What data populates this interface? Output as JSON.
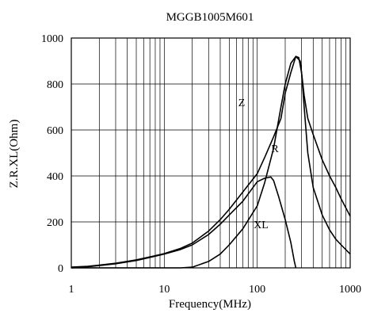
{
  "chart_data": {
    "type": "line",
    "title": "MGGB1005M601",
    "xlabel": "Frequency(MHz)",
    "ylabel": "Z.R.XL(Ohm)",
    "x_scale": "log",
    "xlim": [
      1,
      1000
    ],
    "ylim": [
      0,
      1000
    ],
    "grid": true,
    "x_ticks": [
      {
        "value": 1,
        "label": "1"
      },
      {
        "value": 10,
        "label": "10"
      },
      {
        "value": 100,
        "label": "100"
      },
      {
        "value": 1000,
        "label": "1000"
      }
    ],
    "y_ticks": [
      {
        "value": 0,
        "label": "0"
      },
      {
        "value": 200,
        "label": "200"
      },
      {
        "value": 400,
        "label": "400"
      },
      {
        "value": 600,
        "label": "600"
      },
      {
        "value": 800,
        "label": "800"
      },
      {
        "value": 1000,
        "label": "1000"
      }
    ],
    "series": [
      {
        "name": "Z",
        "label_at": {
          "x": 68,
          "y": 720
        },
        "points": [
          [
            1,
            3
          ],
          [
            1.5,
            7
          ],
          [
            2,
            12
          ],
          [
            3,
            20
          ],
          [
            5,
            35
          ],
          [
            7,
            48
          ],
          [
            10,
            62
          ],
          [
            15,
            85
          ],
          [
            20,
            108
          ],
          [
            30,
            160
          ],
          [
            40,
            210
          ],
          [
            50,
            255
          ],
          [
            70,
            330
          ],
          [
            100,
            410
          ],
          [
            120,
            480
          ],
          [
            150,
            570
          ],
          [
            180,
            650
          ],
          [
            200,
            760
          ],
          [
            230,
            850
          ],
          [
            260,
            920
          ],
          [
            280,
            915
          ],
          [
            300,
            850
          ],
          [
            320,
            750
          ],
          [
            350,
            650
          ],
          [
            400,
            580
          ],
          [
            500,
            470
          ],
          [
            600,
            400
          ],
          [
            700,
            350
          ],
          [
            800,
            300
          ],
          [
            1000,
            225
          ]
        ]
      },
      {
        "name": "R",
        "label_at": {
          "x": 155,
          "y": 520
        },
        "points": [
          [
            1,
            0
          ],
          [
            10,
            0
          ],
          [
            15,
            0
          ],
          [
            20,
            3
          ],
          [
            30,
            28
          ],
          [
            40,
            60
          ],
          [
            50,
            100
          ],
          [
            70,
            170
          ],
          [
            100,
            270
          ],
          [
            120,
            370
          ],
          [
            150,
            520
          ],
          [
            180,
            700
          ],
          [
            200,
            800
          ],
          [
            230,
            890
          ],
          [
            260,
            920
          ],
          [
            290,
            900
          ],
          [
            300,
            850
          ],
          [
            320,
            700
          ],
          [
            350,
            500
          ],
          [
            400,
            350
          ],
          [
            500,
            230
          ],
          [
            600,
            165
          ],
          [
            700,
            125
          ],
          [
            800,
            100
          ],
          [
            1000,
            60
          ]
        ]
      },
      {
        "name": "XL",
        "label_at": {
          "x": 110,
          "y": 190
        },
        "points": [
          [
            1,
            0
          ],
          [
            1.5,
            5
          ],
          [
            2,
            10
          ],
          [
            3,
            18
          ],
          [
            5,
            32
          ],
          [
            7,
            45
          ],
          [
            10,
            60
          ],
          [
            15,
            80
          ],
          [
            20,
            100
          ],
          [
            30,
            145
          ],
          [
            40,
            190
          ],
          [
            50,
            230
          ],
          [
            70,
            290
          ],
          [
            100,
            375
          ],
          [
            120,
            390
          ],
          [
            140,
            395
          ],
          [
            150,
            380
          ],
          [
            170,
            310
          ],
          [
            200,
            210
          ],
          [
            230,
            110
          ],
          [
            250,
            30
          ],
          [
            260,
            0
          ]
        ]
      }
    ]
  }
}
